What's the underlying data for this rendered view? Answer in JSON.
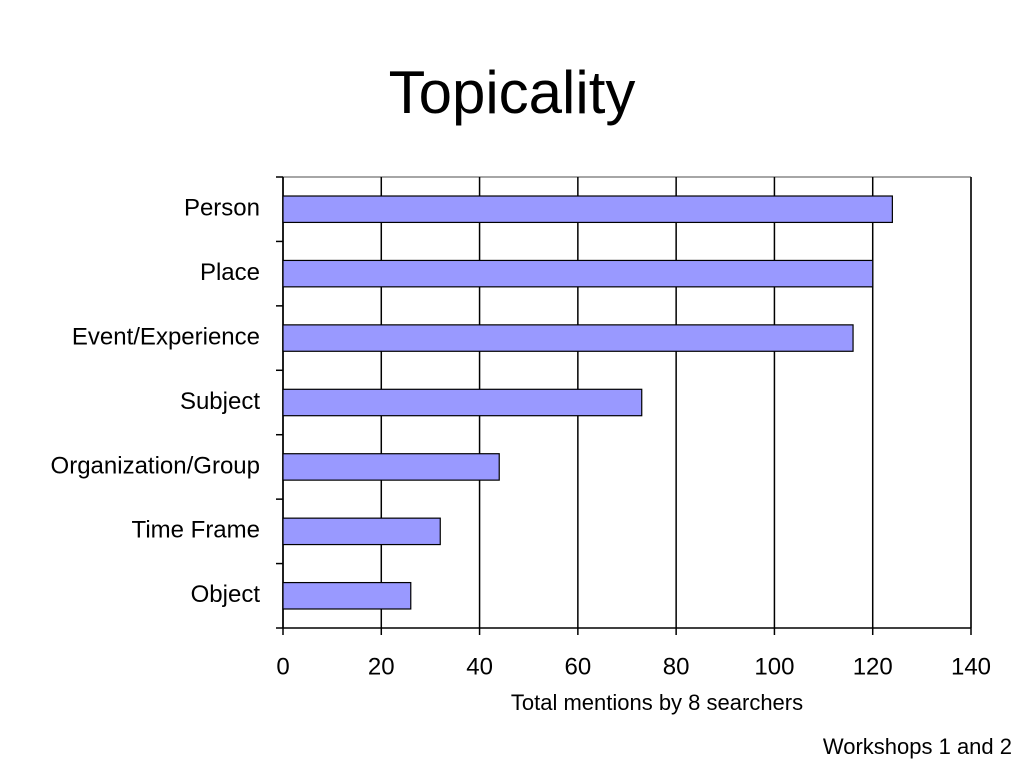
{
  "chart_data": {
    "type": "bar",
    "title": "Topicality",
    "categories": [
      "Person",
      "Place",
      "Event/Experience",
      "Subject",
      "Organization/Group",
      "Time Frame",
      "Object"
    ],
    "values": [
      124,
      120,
      116,
      73,
      44,
      32,
      26
    ],
    "color": "#9999ff",
    "xlabel": "Total mentions by 8 searchers",
    "xlim": [
      0,
      140
    ],
    "xticks": [
      0,
      20,
      40,
      60,
      80,
      100,
      120,
      140
    ],
    "grid": true,
    "note": "Workshops 1 and 2"
  }
}
